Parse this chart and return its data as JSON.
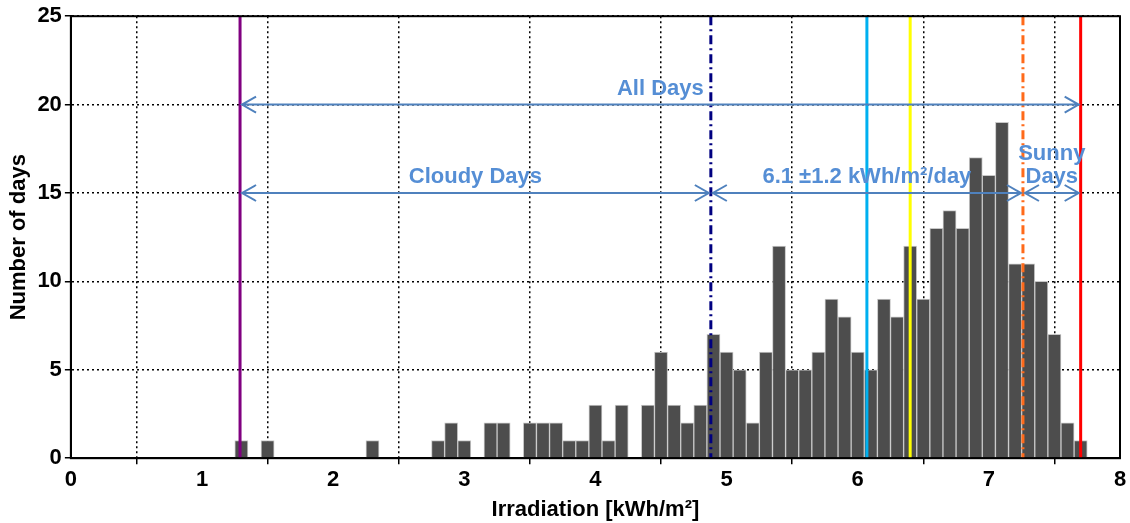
{
  "chart_data": {
    "type": "histogram",
    "xlabel": "Irradiation [kWh/m²]",
    "ylabel": "Number of days",
    "bins": [
      1.25,
      1.35,
      1.45,
      1.55,
      1.65,
      1.75,
      1.85,
      1.95,
      2.05,
      2.15,
      2.25,
      2.35,
      2.45,
      2.55,
      2.65,
      2.75,
      2.85,
      2.95,
      3.05,
      3.15,
      3.25,
      3.35,
      3.45,
      3.55,
      3.65,
      3.75,
      3.85,
      3.95,
      4.05,
      4.15,
      4.25,
      4.35,
      4.45,
      4.55,
      4.65,
      4.75,
      4.85,
      4.95,
      5.05,
      5.15,
      5.25,
      5.35,
      5.45,
      5.55,
      5.65,
      5.75,
      5.85,
      5.95,
      6.05,
      6.15,
      6.25,
      6.35,
      6.45,
      6.55,
      6.65,
      6.75,
      6.85,
      6.95,
      7.05,
      7.15,
      7.25,
      7.35,
      7.45,
      7.55,
      7.65,
      7.75
    ],
    "values": [
      1,
      0,
      1,
      0,
      0,
      0,
      0,
      0,
      0,
      0,
      1,
      0,
      0,
      0,
      0,
      1,
      2,
      1,
      0,
      2,
      2,
      0,
      2,
      2,
      2,
      1,
      1,
      3,
      1,
      3,
      0,
      3,
      6,
      3,
      2,
      3,
      7,
      6,
      5,
      2,
      6,
      12,
      5,
      5,
      6,
      9,
      8,
      6,
      5,
      9,
      8,
      12,
      9,
      13,
      14,
      13,
      17,
      16,
      19,
      11,
      11,
      10,
      7,
      2,
      1
    ],
    "color": "#4d4d4d",
    "xlim": [
      0,
      8
    ],
    "xticks": [
      0,
      1,
      2,
      3,
      4,
      5,
      6,
      7,
      8
    ],
    "ylim": [
      0,
      25
    ],
    "yticks": [
      0,
      5,
      10,
      15,
      20,
      25
    ],
    "grid": true,
    "ref_lines": [
      {
        "axis": "x",
        "value": 1.29,
        "color": "#800080",
        "line_style": "solid"
      },
      {
        "axis": "x",
        "value": 4.88,
        "color": "#000080",
        "line_style": "dashed"
      },
      {
        "axis": "x",
        "value": 6.07,
        "color": "#00b0f0",
        "line_style": "solid"
      },
      {
        "axis": "x",
        "value": 6.4,
        "color": "#ffff00",
        "line_style": "solid"
      },
      {
        "axis": "x",
        "value": 7.26,
        "color": "#ff6a1a",
        "line_style": "dashed"
      },
      {
        "axis": "x",
        "value": 7.7,
        "color": "#ff0000",
        "line_style": "solid"
      }
    ],
    "annotations": [
      "All Days",
      "Cloudy Days",
      "6.1 ±1.2 kWh/m²/day",
      "Sunny Days"
    ]
  }
}
